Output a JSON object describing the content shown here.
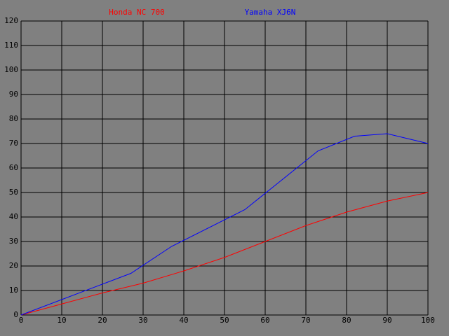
{
  "chart_data": {
    "type": "line",
    "series": [
      {
        "name": "Honda NC 700",
        "color": "#ff0000",
        "x": [
          0,
          10,
          20,
          30,
          40,
          50,
          60,
          70,
          80,
          90,
          100
        ],
        "values": [
          0,
          4.5,
          9,
          13,
          18,
          23.5,
          30,
          36.5,
          42,
          46.5,
          50
        ]
      },
      {
        "name": "Yamaha XJ6N",
        "color": "#0000ff",
        "x": [
          0,
          27,
          37,
          55,
          73,
          82,
          90,
          100
        ],
        "values": [
          0,
          17,
          28,
          43,
          67,
          73,
          74,
          70
        ]
      }
    ],
    "xlim": [
      0,
      100
    ],
    "xticks": [
      0,
      10,
      20,
      30,
      40,
      50,
      60,
      70,
      80,
      90,
      100
    ],
    "ylim": [
      0,
      120
    ],
    "yticks": [
      0,
      10,
      20,
      30,
      40,
      50,
      60,
      70,
      80,
      90,
      100,
      110,
      120
    ],
    "grid": true
  }
}
